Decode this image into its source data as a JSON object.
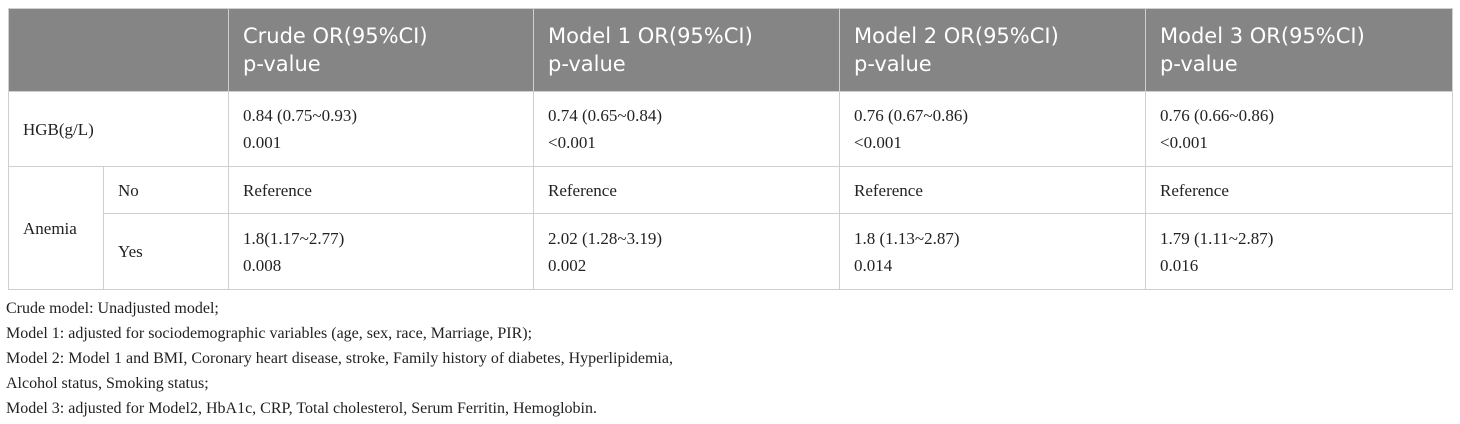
{
  "table": {
    "header": [
      [
        "Crude OR(95%CI)",
        "p-value"
      ],
      [
        "Model 1 OR(95%CI)",
        "p-value"
      ],
      [
        "Model 2 OR(95%CI)",
        "p-value"
      ],
      [
        "Model 3 OR(95%CI)",
        "p-value"
      ]
    ],
    "rows": [
      {
        "label": "HGB(g/L)",
        "cells": [
          [
            "0.84 (0.75~0.93)",
            "0.001"
          ],
          [
            "0.74 (0.65~0.84)",
            "<0.001"
          ],
          [
            "0.76 (0.67~0.86)",
            "<0.001"
          ],
          [
            "0.76 (0.66~0.86)",
            "<0.001"
          ]
        ]
      },
      {
        "label": "Anemia",
        "subrows": [
          {
            "label": "No",
            "cells": [
              [
                "Reference"
              ],
              [
                "Reference"
              ],
              [
                "Reference"
              ],
              [
                "Reference"
              ]
            ]
          },
          {
            "label": "Yes",
            "cells": [
              [
                "1.8(1.17~2.77)",
                "0.008"
              ],
              [
                "2.02 (1.28~3.19)",
                "0.002"
              ],
              [
                "1.8 (1.13~2.87)",
                "0.014"
              ],
              [
                "1.79 (1.11~2.87)",
                "0.016"
              ]
            ]
          }
        ]
      }
    ]
  },
  "footnotes": [
    "Crude model: Unadjusted model;",
    "Model 1: adjusted for sociodemographic variables (age, sex, race, Marriage, PIR);",
    "Model 2: Model 1 and BMI, Coronary heart disease, stroke, Family history of diabetes, Hyperlipidemia,",
    "Alcohol status, Smoking status;",
    "Model 3: adjusted for Model2, HbA1c, CRP, Total cholesterol, Serum Ferritin, Hemoglobin."
  ]
}
